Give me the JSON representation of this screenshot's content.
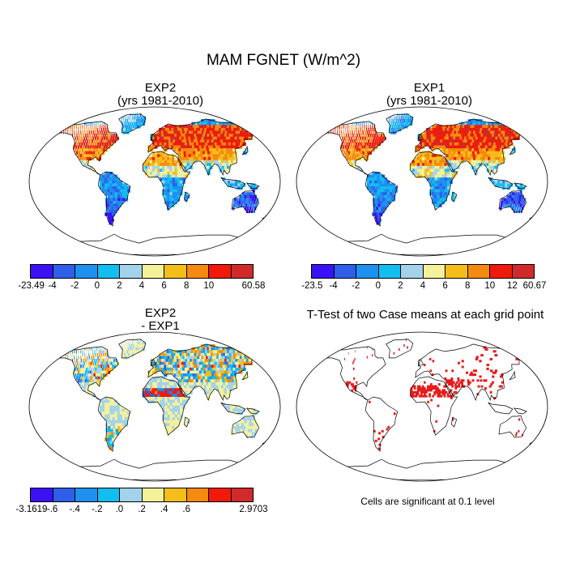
{
  "figure": {
    "title": "MAM FGNET (W/m^2)"
  },
  "colors": {
    "scale": [
      "#3a12f5",
      "#2f5fe8",
      "#1e90f0",
      "#12bdf0",
      "#a3d3ea",
      "#f4f19a",
      "#f5bd1a",
      "#f58a10",
      "#f01a0a",
      "#d02a2a"
    ],
    "land_gray": "#d8d8d8",
    "signif": "#e81a1a"
  },
  "chart_data": [
    {
      "type": "heatmap",
      "id": "exp2",
      "title_line1": "EXP2",
      "title_line2": "(yrs 1981-2010)",
      "colorbar_labels": [
        "-23.49",
        "-4",
        "-2",
        "0",
        "2",
        "4",
        "6",
        "8",
        "10",
        "60.58"
      ],
      "colorbar_label_slots": [
        0,
        1,
        2,
        3,
        4,
        5,
        6,
        7,
        8,
        10
      ],
      "vmin": -23.49,
      "vmax": 60.58
    },
    {
      "type": "heatmap",
      "id": "exp1",
      "title_line1": "EXP1",
      "title_line2": "(yrs 1981-2010)",
      "colorbar_labels": [
        "-23.5",
        "-4",
        "-2",
        "0",
        "2",
        "4",
        "6",
        "8",
        "10",
        "12",
        "60.67"
      ],
      "colorbar_label_slots": [
        0,
        1,
        2,
        3,
        4,
        5,
        6,
        7,
        8,
        9,
        10
      ],
      "vmin": -23.5,
      "vmax": 60.67
    },
    {
      "type": "heatmap",
      "id": "diff",
      "title_line1": "EXP2",
      "title_line2": "- EXP1",
      "colorbar_labels": [
        "-3.1619",
        "-.6",
        "-.4",
        "-.2",
        ".0",
        ".2",
        ".4",
        ".6",
        "2.9703"
      ],
      "colorbar_label_slots": [
        0,
        1,
        2,
        3,
        4,
        5,
        6,
        7,
        10
      ],
      "vmin": -3.1619,
      "vmax": 2.9703
    },
    {
      "type": "heatmap",
      "id": "ttest",
      "title_line1": "T-Test of two Case means at each grid point",
      "note": "Cells are significant at 0.1 level"
    }
  ]
}
